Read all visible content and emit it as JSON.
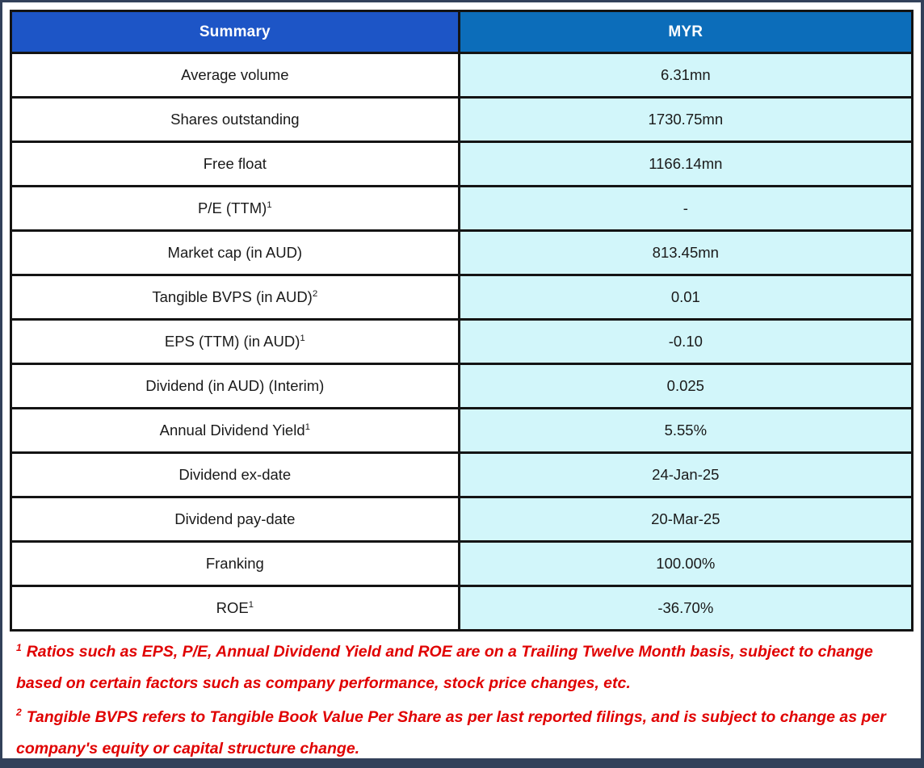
{
  "table": {
    "header": [
      {
        "label": "Summary"
      },
      {
        "label": "MYR"
      }
    ],
    "rows": [
      {
        "label": "Average volume",
        "sup": "",
        "value": "6.31mn"
      },
      {
        "label": "Shares outstanding",
        "sup": "",
        "value": "1730.75mn"
      },
      {
        "label": "Free float",
        "sup": "",
        "value": "1166.14mn"
      },
      {
        "label": "P/E (TTM)",
        "sup": "1",
        "value": "-"
      },
      {
        "label": "Market cap (in AUD)",
        "sup": "",
        "value": "813.45mn"
      },
      {
        "label": "Tangible BVPS (in AUD)",
        "sup": "2",
        "value": "0.01"
      },
      {
        "label": "EPS (TTM) (in AUD)",
        "sup": "1",
        "value": "-0.10"
      },
      {
        "label": "Dividend (in AUD) (Interim)",
        "sup": "",
        "value": "0.025"
      },
      {
        "label": "Annual Dividend Yield",
        "sup": "1",
        "value": "5.55%"
      },
      {
        "label": "Dividend ex-date",
        "sup": "",
        "value": "24-Jan-25"
      },
      {
        "label": "Dividend pay-date",
        "sup": "",
        "value": "20-Mar-25"
      },
      {
        "label": "Franking",
        "sup": "",
        "value": "100.00%"
      },
      {
        "label": "ROE",
        "sup": "1",
        "value": "-36.70%"
      }
    ]
  },
  "footnotes": [
    {
      "sup": "1",
      "text": "Ratios such as EPS, P/E, Annual Dividend Yield and ROE are on a Trailing Twelve Month basis, subject to change based on certain factors such as company performance, stock price changes, etc."
    },
    {
      "sup": "2",
      "text": "Tangible BVPS refers to Tangible Book Value Per Share as per last reported filings, and is subject to change as per company's equity or capital structure change."
    }
  ],
  "colors": {
    "header_left_bg": "#1D55C6",
    "header_right_bg": "#0C6DBA",
    "value_cell_bg": "#D2F6FA",
    "footnote_red": "#E00000",
    "frame_navy": "#32415A",
    "border_black": "#141414"
  }
}
